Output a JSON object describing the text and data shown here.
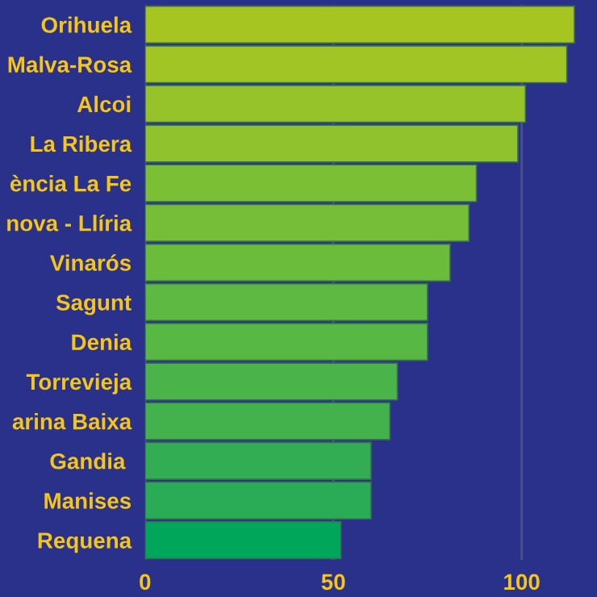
{
  "chart_data": {
    "type": "bar",
    "orientation": "horizontal",
    "categories": [
      "Orihuela",
      "Malva-Rosa",
      "Alcoi",
      "La Ribera",
      "ència La Fe",
      "nova - Llíria",
      "Vinarós",
      "Sagunt",
      "Denia",
      "Torrevieja",
      "arina Baixa",
      "Gandia ",
      "Manises",
      "Requena"
    ],
    "values": [
      114,
      112,
      101,
      99,
      88,
      86,
      81,
      75,
      75,
      67,
      65,
      60,
      60,
      52
    ],
    "colors": [
      "#a6c520",
      "#a0c524",
      "#97c32a",
      "#90c22e",
      "#7bbf34",
      "#76be37",
      "#6bbc3b",
      "#5db942",
      "#58b844",
      "#4ab34a",
      "#44b24c",
      "#33ad53",
      "#2aab55",
      "#00a65a"
    ],
    "xlim": [
      0,
      120
    ],
    "xticks": [
      0,
      50,
      100
    ],
    "grid": "x"
  }
}
